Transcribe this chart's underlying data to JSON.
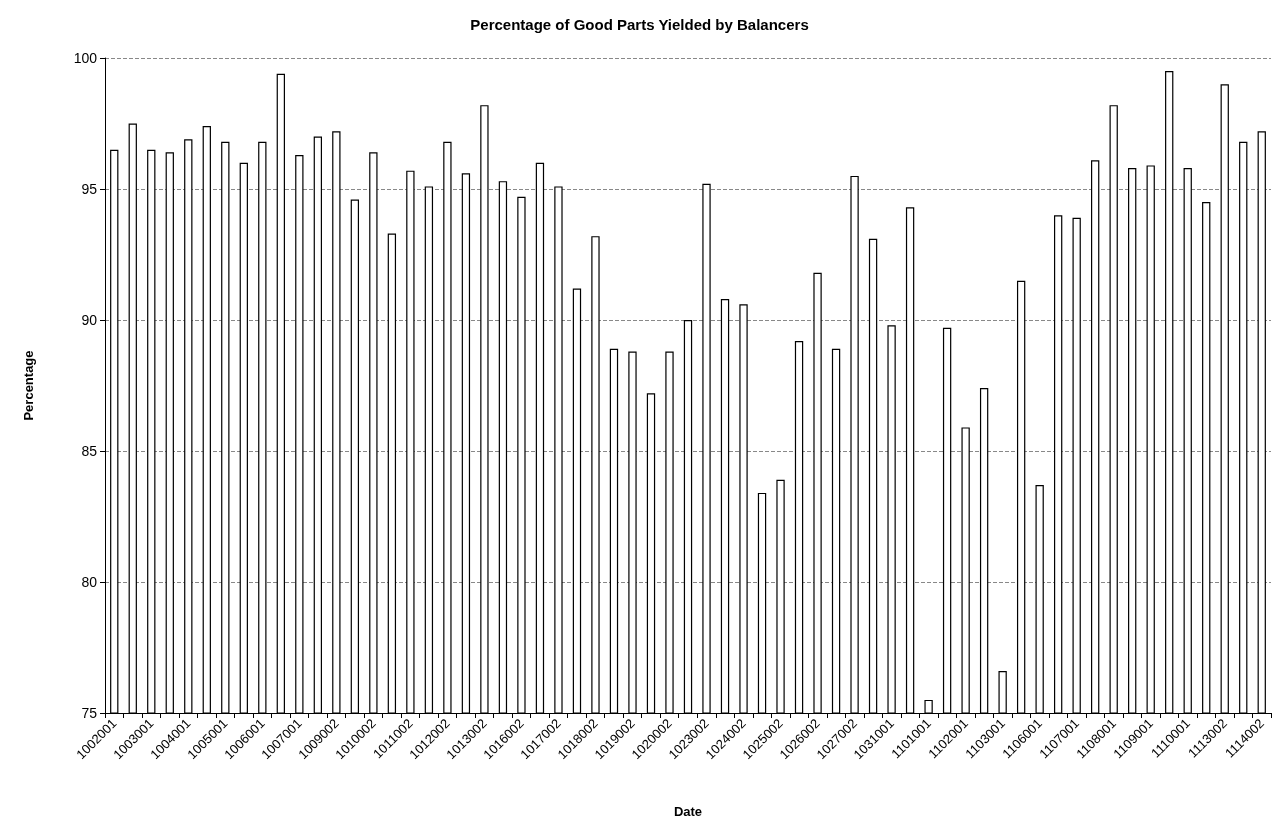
{
  "chart_data": {
    "type": "bar",
    "title": "Percentage of Good Parts Yielded by Balancers",
    "xlabel": "Date",
    "ylabel": "Percentage",
    "categories": [
      "1002001",
      null,
      "1003001",
      null,
      "1004001",
      null,
      "1005001",
      null,
      "1006001",
      null,
      "1007001",
      null,
      "1009002",
      null,
      "1010002",
      null,
      "1011002",
      null,
      "1012002",
      null,
      "1013002",
      null,
      "1016002",
      null,
      "1017002",
      null,
      "1018002",
      null,
      "1019002",
      null,
      "1020002",
      null,
      "1023002",
      null,
      "1024002",
      null,
      "1025002",
      null,
      "1026002",
      null,
      "1027002",
      null,
      "1031001",
      null,
      "1101001",
      null,
      "1102001",
      null,
      "1103001",
      null,
      "1106001",
      null,
      "1107001",
      null,
      "1108001",
      null,
      "1109001",
      null,
      "1110001",
      null,
      "1113002",
      null,
      "1114002"
    ],
    "values": [
      96.5,
      97.5,
      96.5,
      96.4,
      96.9,
      97.4,
      96.8,
      96.0,
      96.8,
      99.4,
      96.3,
      97.0,
      97.2,
      94.6,
      96.4,
      93.3,
      95.7,
      95.1,
      96.8,
      95.6,
      98.2,
      95.3,
      94.7,
      96.0,
      95.1,
      91.2,
      93.2,
      88.9,
      88.8,
      87.2,
      88.8,
      90.0,
      95.2,
      90.8,
      90.6,
      83.4,
      83.9,
      89.2,
      91.8,
      88.9,
      95.5,
      93.1,
      89.8,
      94.3,
      75.5,
      89.7,
      85.9,
      87.4,
      76.6,
      91.5,
      83.7,
      94.0,
      93.9,
      96.1,
      98.2,
      95.8,
      95.9,
      99.5,
      95.8,
      94.5,
      99.0,
      96.8,
      97.2
    ],
    "color": "#ffffff",
    "ylim": [
      75,
      100
    ],
    "yticks": [
      75,
      80,
      85,
      90,
      95,
      100
    ],
    "grid": "y"
  }
}
